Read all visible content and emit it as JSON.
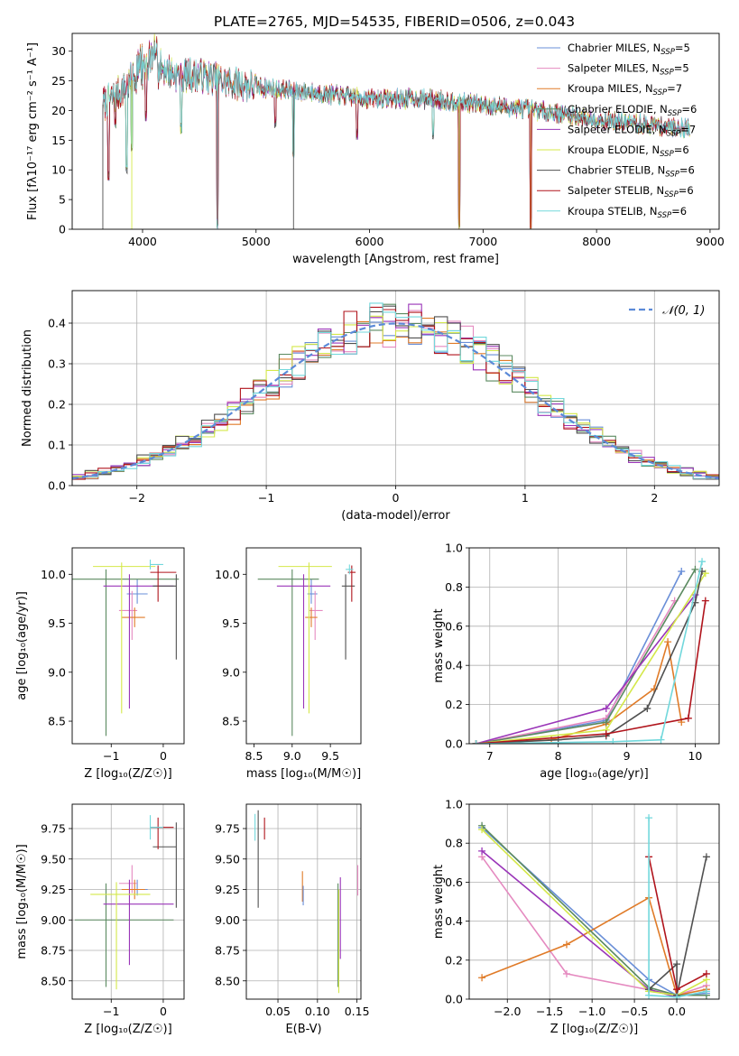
{
  "figure": {
    "title": "PLATE=2765, MJD=54535, FIBERID=0506, z=0.043"
  },
  "colors": {
    "Chabrier MILES": "#6a8fd8",
    "Salpeter MILES": "#e58ac0",
    "Kroupa MILES": "#e07b28",
    "Chabrier ELODIE": "#5b8a60",
    "Salpeter ELODIE": "#9a35b8",
    "Kroupa ELODIE": "#d4e84a",
    "Chabrier STELIB": "#505050",
    "Salpeter STELIB": "#b0141c",
    "Kroupa STELIB": "#72d8dc",
    "normal": "#5b8ad8"
  },
  "chart_data": [
    {
      "id": "spectrum",
      "type": "line",
      "title": "PLATE=2765, MJD=54535, FIBERID=0506, z=0.043",
      "xlabel": "wavelength [Angstrom, rest frame]",
      "ylabel": "Flux [fλ10⁻¹⁷ erg cm⁻² s⁻¹ A⁻¹]",
      "xlim": [
        3380,
        9080
      ],
      "ylim": [
        0,
        33
      ],
      "xticks": [
        4000,
        5000,
        6000,
        7000,
        8000,
        9000
      ],
      "yticks": [
        0,
        5,
        10,
        15,
        20,
        25,
        30
      ],
      "legend_position": "right",
      "series": [
        {
          "name": "Chabrier MILES, N_SSP=5",
          "label": "Chabrier MILES, N",
          "n": "=5",
          "colorKey": "Chabrier MILES"
        },
        {
          "name": "Salpeter MILES, N_SSP=5",
          "label": "Salpeter MILES, N",
          "n": "=5",
          "colorKey": "Salpeter MILES"
        },
        {
          "name": "Kroupa MILES, N_SSP=7",
          "label": "Kroupa MILES, N",
          "n": "=7",
          "colorKey": "Kroupa MILES"
        },
        {
          "name": "Chabrier ELODIE, N_SSP=6",
          "label": "Chabrier ELODIE, N",
          "n": "=6",
          "colorKey": "Chabrier ELODIE"
        },
        {
          "name": "Salpeter ELODIE, N_SSP=7",
          "label": "Salpeter ELODIE, N",
          "n": "=7",
          "colorKey": "Salpeter ELODIE"
        },
        {
          "name": "Kroupa ELODIE, N_SSP=6",
          "label": "Kroupa ELODIE, N",
          "n": "=6",
          "colorKey": "Kroupa ELODIE"
        },
        {
          "name": "Chabrier STELIB, N_SSP=6",
          "label": "Chabrier STELIB, N",
          "n": "=6",
          "colorKey": "Chabrier STELIB"
        },
        {
          "name": "Salpeter STELIB, N_SSP=6",
          "label": "Salpeter STELIB, N",
          "n": "=6",
          "colorKey": "Salpeter STELIB"
        },
        {
          "name": "Kroupa STELIB, N_SSP=6",
          "label": "Kroupa STELIB, N",
          "n": "=6",
          "colorKey": "Kroupa STELIB"
        }
      ],
      "continuum": [
        [
          3650,
          21
        ],
        [
          3800,
          23
        ],
        [
          3950,
          26
        ],
        [
          4100,
          28
        ],
        [
          4300,
          26
        ],
        [
          4500,
          26
        ],
        [
          4700,
          25
        ],
        [
          5000,
          24
        ],
        [
          5500,
          23
        ],
        [
          6000,
          22
        ],
        [
          6500,
          22
        ],
        [
          7000,
          21
        ],
        [
          7500,
          20
        ],
        [
          8000,
          18.5
        ],
        [
          8500,
          17.5
        ],
        [
          8820,
          17
        ]
      ],
      "absorption_lines": [
        3700,
        3760,
        3860,
        3905,
        4030,
        4340,
        4660,
        5170,
        5330,
        5890,
        6560,
        6790,
        7420,
        8450,
        8580
      ]
    },
    {
      "id": "residuals",
      "type": "bar",
      "xlabel": "(data-model)/error",
      "ylabel": "Normed distribution",
      "xlim": [
        -2.5,
        2.5
      ],
      "ylim": [
        0,
        0.48
      ],
      "xticks": [
        -2,
        -1,
        0,
        1,
        2
      ],
      "yticks": [
        0.0,
        0.1,
        0.2,
        0.3,
        0.4
      ],
      "bin_width": 0.1,
      "legend": "𝒩(0, 1)",
      "normal": {
        "mean": 0,
        "sigma": 1
      }
    },
    {
      "id": "z-age",
      "type": "scatter",
      "xlabel": "Z [log₁₀(Z/Z☉)]",
      "ylabel": "age  [log₁₀(age/yr)]",
      "xlim": [
        -1.75,
        0.4
      ],
      "ylim": [
        8.27,
        10.27
      ],
      "xticks": [
        -1,
        0
      ],
      "yticks": [
        8.5,
        9.0,
        9.5,
        10.0
      ],
      "errorbars": [
        {
          "colorKey": "Chabrier MILES",
          "x": -0.5,
          "y": 9.8,
          "xerr": [
            0.2,
            0.2
          ],
          "yerr": [
            0.1,
            0.15
          ]
        },
        {
          "colorKey": "Salpeter MILES",
          "x": -0.6,
          "y": 9.63,
          "xerr": [
            0.25,
            0.1
          ],
          "yerr": [
            0.3,
            0.2
          ]
        },
        {
          "colorKey": "Kroupa MILES",
          "x": -0.55,
          "y": 9.56,
          "xerr": [
            0.25,
            0.2
          ],
          "yerr": [
            0.1,
            0.1
          ]
        },
        {
          "colorKey": "Chabrier ELODIE",
          "x": -1.1,
          "y": 9.95,
          "xerr": [
            0.65,
            1.4
          ],
          "yerr": [
            1.6,
            0.1
          ]
        },
        {
          "colorKey": "Salpeter ELODIE",
          "x": -0.65,
          "y": 9.88,
          "xerr": [
            0.5,
            0.85
          ],
          "yerr": [
            1.25,
            0.12
          ]
        },
        {
          "colorKey": "Kroupa ELODIE",
          "x": -0.8,
          "y": 10.08,
          "xerr": [
            0.55,
            0.65
          ],
          "yerr": [
            1.5,
            0.04
          ]
        },
        {
          "colorKey": "Chabrier STELIB",
          "x": 0.25,
          "y": 9.88,
          "xerr": [
            0.45,
            0.0
          ],
          "yerr": [
            0.75,
            0.12
          ]
        },
        {
          "colorKey": "Salpeter STELIB",
          "x": -0.1,
          "y": 10.02,
          "xerr": [
            0.15,
            0.35
          ],
          "yerr": [
            0.3,
            0.07
          ]
        },
        {
          "colorKey": "Kroupa STELIB",
          "x": -0.25,
          "y": 10.1,
          "xerr": [
            0.0,
            0.25
          ],
          "yerr": [
            0.05,
            0.05
          ]
        }
      ]
    },
    {
      "id": "mass-age",
      "type": "scatter",
      "xlabel": "mass [log₁₀(M/M☉)]",
      "ylabel": "",
      "xlim": [
        8.4,
        9.9
      ],
      "ylim": [
        8.27,
        10.27
      ],
      "xticks": [
        8.5,
        9.0,
        9.5
      ],
      "yticks": [
        8.5,
        9.0,
        9.5,
        10.0
      ],
      "errorbars": [
        {
          "colorKey": "Chabrier MILES",
          "x": 9.25,
          "y": 9.8,
          "xerr": [
            0.05,
            0.08
          ],
          "yerr": [
            0.1,
            0.15
          ]
        },
        {
          "colorKey": "Salpeter MILES",
          "x": 9.3,
          "y": 9.63,
          "xerr": [
            0.08,
            0.1
          ],
          "yerr": [
            0.3,
            0.2
          ]
        },
        {
          "colorKey": "Kroupa MILES",
          "x": 9.25,
          "y": 9.56,
          "xerr": [
            0.08,
            0.08
          ],
          "yerr": [
            0.1,
            0.1
          ]
        },
        {
          "colorKey": "Chabrier ELODIE",
          "x": 9.0,
          "y": 9.95,
          "xerr": [
            0.45,
            0.35
          ],
          "yerr": [
            1.6,
            0.1
          ]
        },
        {
          "colorKey": "Salpeter ELODIE",
          "x": 9.15,
          "y": 9.88,
          "xerr": [
            0.35,
            0.35
          ],
          "yerr": [
            1.25,
            0.12
          ]
        },
        {
          "colorKey": "Kroupa ELODIE",
          "x": 9.22,
          "y": 10.08,
          "xerr": [
            0.4,
            0.3
          ],
          "yerr": [
            1.5,
            0.04
          ]
        },
        {
          "colorKey": "Chabrier STELIB",
          "x": 9.7,
          "y": 9.88,
          "xerr": [
            0.05,
            0.12
          ],
          "yerr": [
            0.75,
            0.12
          ]
        },
        {
          "colorKey": "Salpeter STELIB",
          "x": 9.78,
          "y": 10.02,
          "xerr": [
            0.05,
            0.05
          ],
          "yerr": [
            0.3,
            0.07
          ]
        },
        {
          "colorKey": "Kroupa STELIB",
          "x": 9.75,
          "y": 10.05,
          "xerr": [
            0.05,
            0.05
          ],
          "yerr": [
            0.05,
            0.05
          ]
        }
      ]
    },
    {
      "id": "age-weight",
      "type": "line",
      "xlabel": "age  [log₁₀(age/yr)]",
      "ylabel": "mass weight",
      "xlim": [
        6.7,
        10.35
      ],
      "ylim": [
        0,
        1.0
      ],
      "xticks": [
        7,
        8,
        9,
        10
      ],
      "yticks": [
        0.0,
        0.2,
        0.4,
        0.6,
        0.8,
        1.0
      ],
      "series": [
        {
          "colorKey": "Chabrier MILES",
          "x": [
            6.8,
            8.7,
            9.8
          ],
          "y": [
            0.0,
            0.12,
            0.88
          ]
        },
        {
          "colorKey": "Salpeter MILES",
          "x": [
            6.8,
            8.7,
            9.7
          ],
          "y": [
            0.0,
            0.13,
            0.73
          ]
        },
        {
          "colorKey": "Kroupa MILES",
          "x": [
            6.8,
            7.9,
            8.7,
            9.4,
            9.6,
            9.8
          ],
          "y": [
            0.0,
            0.02,
            0.1,
            0.28,
            0.52,
            0.11
          ]
        },
        {
          "colorKey": "Chabrier ELODIE",
          "x": [
            6.8,
            8.7,
            10.0
          ],
          "y": [
            0.0,
            0.11,
            0.89
          ]
        },
        {
          "colorKey": "Salpeter ELODIE",
          "x": [
            6.8,
            8.7,
            10.0
          ],
          "y": [
            0.0,
            0.18,
            0.76
          ]
        },
        {
          "colorKey": "Kroupa ELODIE",
          "x": [
            6.8,
            8.7,
            10.15
          ],
          "y": [
            0.0,
            0.07,
            0.87
          ]
        },
        {
          "colorKey": "Chabrier STELIB",
          "x": [
            6.8,
            8.0,
            8.7,
            9.3,
            10.0,
            10.1
          ],
          "y": [
            0.0,
            0.02,
            0.04,
            0.18,
            0.72,
            0.88
          ]
        },
        {
          "colorKey": "Salpeter STELIB",
          "x": [
            6.8,
            8.7,
            9.9,
            10.15
          ],
          "y": [
            0.0,
            0.05,
            0.13,
            0.73
          ]
        },
        {
          "colorKey": "Kroupa STELIB",
          "x": [
            6.8,
            8.8,
            9.5,
            10.1
          ],
          "y": [
            0.0,
            0.01,
            0.02,
            0.93
          ]
        }
      ]
    },
    {
      "id": "z-mass",
      "type": "scatter",
      "xlabel": "Z [log₁₀(Z/Z☉)]",
      "ylabel": "mass [log₁₀(M/M☉)]",
      "xlim": [
        -1.75,
        0.4
      ],
      "ylim": [
        8.35,
        9.95
      ],
      "xticks": [
        -1,
        0
      ],
      "yticks": [
        8.5,
        8.75,
        9.0,
        9.25,
        9.5,
        9.75
      ],
      "errorbars": [
        {
          "colorKey": "Chabrier MILES",
          "x": -0.5,
          "y": 9.25,
          "xerr": [
            0.2,
            0.2
          ],
          "yerr": [
            0.05,
            0.08
          ]
        },
        {
          "colorKey": "Salpeter MILES",
          "x": -0.6,
          "y": 9.3,
          "xerr": [
            0.25,
            0.1
          ],
          "yerr": [
            0.08,
            0.15
          ]
        },
        {
          "colorKey": "Kroupa MILES",
          "x": -0.55,
          "y": 9.25,
          "xerr": [
            0.25,
            0.2
          ],
          "yerr": [
            0.08,
            0.08
          ]
        },
        {
          "colorKey": "Chabrier ELODIE",
          "x": -1.1,
          "y": 9.0,
          "xerr": [
            0.6,
            1.3
          ],
          "yerr": [
            0.55,
            0.3
          ]
        },
        {
          "colorKey": "Salpeter ELODIE",
          "x": -0.65,
          "y": 9.13,
          "xerr": [
            0.5,
            0.85
          ],
          "yerr": [
            0.5,
            0.2
          ]
        },
        {
          "colorKey": "Kroupa ELODIE",
          "x": -0.9,
          "y": 9.21,
          "xerr": [
            0.5,
            0.65
          ],
          "yerr": [
            0.78,
            0.1
          ]
        },
        {
          "colorKey": "Chabrier STELIB",
          "x": 0.25,
          "y": 9.6,
          "xerr": [
            0.45,
            0.0
          ],
          "yerr": [
            0.5,
            0.2
          ]
        },
        {
          "colorKey": "Salpeter STELIB",
          "x": -0.1,
          "y": 9.76,
          "xerr": [
            0.15,
            0.3
          ],
          "yerr": [
            0.18,
            0.08
          ]
        },
        {
          "colorKey": "Kroupa STELIB",
          "x": -0.25,
          "y": 9.76,
          "xerr": [
            0.0,
            0.25
          ],
          "yerr": [
            0.1,
            0.1
          ]
        }
      ]
    },
    {
      "id": "ebv-mass",
      "type": "scatter",
      "xlabel": "E(B-V)",
      "ylabel": "",
      "xlim": [
        0.01,
        0.155
      ],
      "ylim": [
        8.35,
        9.95
      ],
      "xticks": [
        0.05,
        0.1,
        0.15
      ],
      "yticks": [
        8.5,
        8.75,
        9.0,
        9.25,
        9.5,
        9.75
      ],
      "errorbars": [
        {
          "colorKey": "Kroupa STELIB",
          "x": 0.021,
          "y": 9.75,
          "xerr": [
            0.0,
            0.0
          ],
          "yerr": [
            0.1,
            0.12
          ]
        },
        {
          "colorKey": "Chabrier STELIB",
          "x": 0.025,
          "y": 9.6,
          "xerr": [
            0.0,
            0.0
          ],
          "yerr": [
            0.5,
            0.3
          ]
        },
        {
          "colorKey": "Salpeter STELIB",
          "x": 0.033,
          "y": 9.76,
          "xerr": [
            0.0,
            0.0
          ],
          "yerr": [
            0.1,
            0.08
          ]
        },
        {
          "colorKey": "Kroupa MILES",
          "x": 0.081,
          "y": 9.25,
          "xerr": [
            0.0,
            0.0
          ],
          "yerr": [
            0.1,
            0.15
          ]
        },
        {
          "colorKey": "Chabrier MILES",
          "x": 0.082,
          "y": 9.2,
          "xerr": [
            0.0,
            0.0
          ],
          "yerr": [
            0.08,
            0.08
          ]
        },
        {
          "colorKey": "Chabrier ELODIE",
          "x": 0.126,
          "y": 9.0,
          "xerr": [
            0.0,
            0.0
          ],
          "yerr": [
            0.55,
            0.3
          ]
        },
        {
          "colorKey": "Kroupa ELODIE",
          "x": 0.127,
          "y": 9.0,
          "xerr": [
            0.0,
            0.0
          ],
          "yerr": [
            0.6,
            0.25
          ]
        },
        {
          "colorKey": "Salpeter ELODIE",
          "x": 0.129,
          "y": 9.13,
          "xerr": [
            0.0,
            0.0
          ],
          "yerr": [
            0.45,
            0.22
          ]
        },
        {
          "colorKey": "Salpeter MILES",
          "x": 0.151,
          "y": 9.3,
          "xerr": [
            0.0,
            0.0
          ],
          "yerr": [
            0.1,
            0.15
          ]
        }
      ]
    },
    {
      "id": "z-weight",
      "type": "line",
      "xlabel": "Z [log₁₀(Z/Z☉)]",
      "ylabel": "mass weight",
      "xlim": [
        -2.45,
        0.5
      ],
      "ylim": [
        0,
        1.0
      ],
      "xticks": [
        -2.0,
        -1.5,
        -1.0,
        -0.5,
        0.0
      ],
      "yticks": [
        0.0,
        0.2,
        0.4,
        0.6,
        0.8,
        1.0
      ],
      "series": [
        {
          "colorKey": "Chabrier MILES",
          "x": [
            -2.3,
            -0.33,
            0.0,
            0.35
          ],
          "y": [
            0.88,
            0.1,
            0.02,
            0.03
          ]
        },
        {
          "colorKey": "Salpeter MILES",
          "x": [
            -2.3,
            -1.3,
            0.0,
            0.35
          ],
          "y": [
            0.73,
            0.13,
            0.02,
            0.07
          ]
        },
        {
          "colorKey": "Kroupa MILES",
          "x": [
            -2.3,
            -1.3,
            -0.33,
            0.0,
            0.35
          ],
          "y": [
            0.11,
            0.28,
            0.52,
            0.02,
            0.05
          ]
        },
        {
          "colorKey": "Chabrier ELODIE",
          "x": [
            -2.3,
            -0.33,
            0.0,
            0.35
          ],
          "y": [
            0.89,
            0.06,
            0.02,
            0.02
          ]
        },
        {
          "colorKey": "Salpeter ELODIE",
          "x": [
            -2.3,
            -0.33,
            0.0
          ],
          "y": [
            0.76,
            0.05,
            0.01
          ]
        },
        {
          "colorKey": "Kroupa ELODIE",
          "x": [
            -2.3,
            -0.33,
            0.0,
            0.35
          ],
          "y": [
            0.87,
            0.04,
            0.02,
            0.1
          ]
        },
        {
          "colorKey": "Chabrier STELIB",
          "x": [
            -0.33,
            0.0,
            0.0,
            0.35
          ],
          "y": [
            0.05,
            0.18,
            0.02,
            0.73
          ]
        },
        {
          "colorKey": "Salpeter STELIB",
          "x": [
            -0.33,
            0.0,
            0.35
          ],
          "y": [
            0.73,
            0.05,
            0.13
          ]
        },
        {
          "colorKey": "Kroupa STELIB",
          "x": [
            -0.33,
            -0.33,
            0.0,
            0.35
          ],
          "y": [
            0.93,
            0.02,
            0.01,
            0.04
          ]
        }
      ]
    }
  ]
}
